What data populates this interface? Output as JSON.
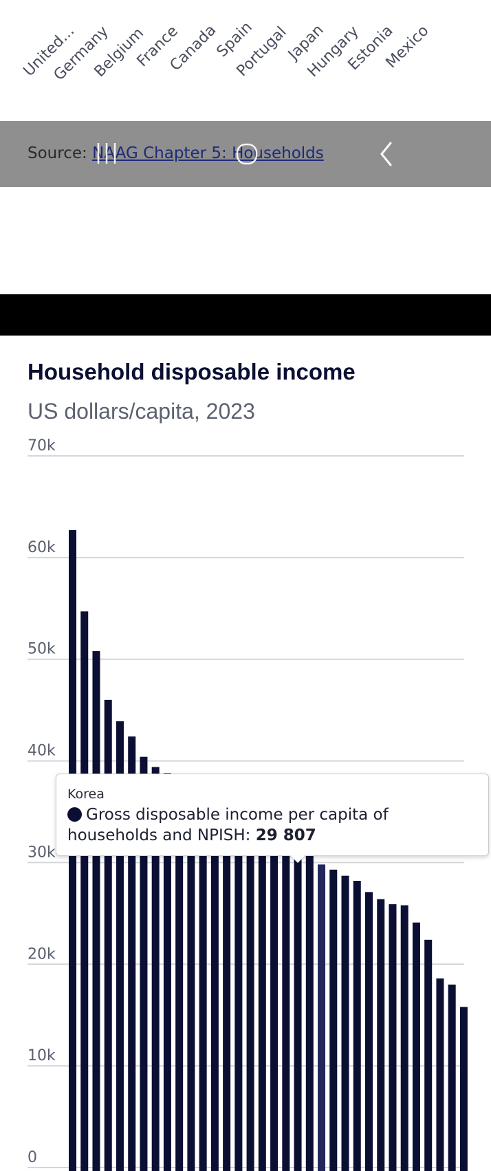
{
  "top_axis": {
    "labels": [
      "United...",
      "Germany",
      "Belgium",
      "France",
      "Canada",
      "Spain",
      "Portugal",
      "Japan",
      "Hungary",
      "Estonia",
      "Mexico"
    ]
  },
  "source": {
    "prefix": "Source: ",
    "link_text": "NAAG Chapter 5: Households"
  },
  "system_nav": {
    "icons": [
      "recent-apps-icon",
      "home-icon",
      "back-icon"
    ]
  },
  "chart": {
    "title": "Household disposable income",
    "subtitle": "US dollars/capita, 2023",
    "tooltip": {
      "country": "Korea",
      "series_label": "Gross disposable income per capita of households and NPISH: ",
      "value_text": "29 807"
    }
  },
  "chart_data": {
    "type": "bar",
    "title": "Household disposable income",
    "subtitle": "US dollars/capita, 2023",
    "series": [
      {
        "name": "Gross disposable income per capita of households and NPISH",
        "values": [
          62700,
          54700,
          50800,
          46000,
          43900,
          42400,
          40400,
          39400,
          38800,
          38300,
          37800,
          37300,
          36800,
          36300,
          35800,
          35200,
          34600,
          33800,
          32800,
          31800,
          30800,
          29807,
          29300,
          28700,
          28200,
          27100,
          26400,
          25900,
          25800,
          24100,
          22400,
          18600,
          18000,
          15800
        ]
      }
    ],
    "highlighted_index": 21,
    "ylim": [
      0,
      70000
    ],
    "y_ticks": [
      0,
      10000,
      20000,
      30000,
      40000,
      50000,
      60000,
      70000
    ],
    "y_tick_labels": [
      "0",
      "10k",
      "20k",
      "30k",
      "40k",
      "50k",
      "60k",
      "70k"
    ],
    "grid": true,
    "bar_color": "#0b0f33"
  }
}
